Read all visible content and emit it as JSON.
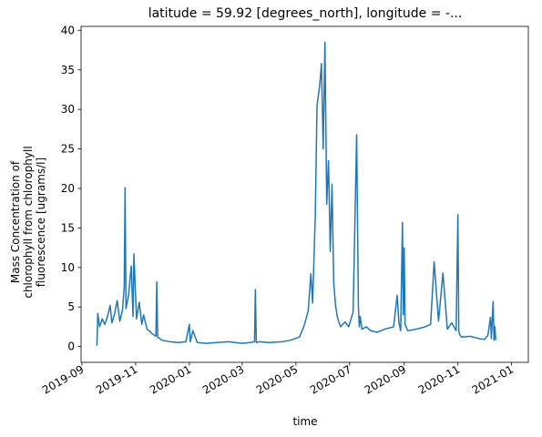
{
  "chart_data": {
    "type": "line",
    "title": "latitude = 59.92 [degrees_north], longitude = -...",
    "xlabel": "time",
    "ylabel_lines": [
      "Mass Concentration of",
      "chlorophyll from chlorophyll",
      "fluorescence [ugrams/l]"
    ],
    "x_axis": "date",
    "xlim": [
      "2019-08-31",
      "2021-01-20"
    ],
    "ylim": [
      -2,
      40.5
    ],
    "x_ticks": [
      "2019-09",
      "2019-11",
      "2020-01",
      "2020-03",
      "2020-05",
      "2020-07",
      "2020-09",
      "2020-11",
      "2021-01"
    ],
    "y_ticks": [
      0,
      5,
      10,
      15,
      20,
      25,
      30,
      35,
      40
    ],
    "grid": false,
    "series": [
      {
        "color": "#1f77b4",
        "x": [
          "2019-09-18",
          "2019-09-19",
          "2019-09-21",
          "2019-09-24",
          "2019-09-27",
          "2019-09-30",
          "2019-10-03",
          "2019-10-05",
          "2019-10-08",
          "2019-10-11",
          "2019-10-14",
          "2019-10-17",
          "2019-10-19",
          "2019-10-20",
          "2019-10-21",
          "2019-10-24",
          "2019-10-27",
          "2019-10-29",
          "2019-10-30",
          "2019-11-02",
          "2019-11-05",
          "2019-11-08",
          "2019-11-10",
          "2019-11-14",
          "2019-11-20",
          "2019-11-24",
          "2019-11-25",
          "2019-11-26",
          "2019-12-01",
          "2019-12-10",
          "2019-12-20",
          "2019-12-28",
          "2020-01-01",
          "2020-01-02",
          "2020-01-05",
          "2020-01-10",
          "2020-01-20",
          "2020-02-01",
          "2020-02-15",
          "2020-03-01",
          "2020-03-10",
          "2020-03-15",
          "2020-03-16",
          "2020-03-17",
          "2020-03-20",
          "2020-04-01",
          "2020-04-15",
          "2020-04-25",
          "2020-05-05",
          "2020-05-10",
          "2020-05-15",
          "2020-05-18",
          "2020-05-20",
          "2020-05-23",
          "2020-05-25",
          "2020-05-28",
          "2020-05-30",
          "2020-06-01",
          "2020-06-03",
          "2020-06-05",
          "2020-06-07",
          "2020-06-09",
          "2020-06-11",
          "2020-06-13",
          "2020-06-15",
          "2020-06-17",
          "2020-06-19",
          "2020-06-21",
          "2020-06-23",
          "2020-06-26",
          "2020-06-30",
          "2020-07-05",
          "2020-07-09",
          "2020-07-11",
          "2020-07-12",
          "2020-07-13",
          "2020-07-15",
          "2020-07-20",
          "2020-07-25",
          "2020-08-01",
          "2020-08-10",
          "2020-08-20",
          "2020-08-24",
          "2020-08-26",
          "2020-08-28",
          "2020-08-30",
          "2020-08-31",
          "2020-09-01",
          "2020-09-02",
          "2020-09-05",
          "2020-09-15",
          "2020-09-25",
          "2020-10-01",
          "2020-10-05",
          "2020-10-10",
          "2020-10-15",
          "2020-10-20",
          "2020-10-25",
          "2020-10-30",
          "2020-11-01",
          "2020-11-02",
          "2020-11-03",
          "2020-11-05",
          "2020-11-15",
          "2020-11-25",
          "2020-12-01",
          "2020-12-05",
          "2020-12-08",
          "2020-12-09",
          "2020-12-11",
          "2020-12-12",
          "2020-12-13",
          "2020-12-14"
        ],
        "y": [
          0.1,
          4.2,
          2.5,
          3.5,
          2.8,
          3.8,
          5.2,
          3.0,
          4.1,
          5.8,
          3.2,
          4.6,
          7.5,
          20.1,
          4.8,
          6.5,
          10.2,
          3.8,
          11.7,
          3.5,
          5.6,
          2.8,
          4.0,
          2.2,
          1.6,
          1.3,
          8.2,
          1.2,
          0.8,
          0.6,
          0.5,
          0.6,
          2.8,
          0.6,
          2.0,
          0.5,
          0.4,
          0.5,
          0.6,
          0.4,
          0.5,
          0.6,
          7.2,
          0.5,
          0.6,
          0.5,
          0.6,
          0.8,
          1.2,
          2.5,
          4.5,
          9.2,
          5.5,
          16.5,
          30.5,
          33.0,
          35.8,
          25.0,
          38.5,
          18.0,
          23.5,
          12.0,
          20.5,
          8.0,
          5.2,
          3.8,
          3.0,
          2.5,
          2.8,
          3.1,
          2.5,
          4.4,
          26.8,
          5.0,
          2.5,
          3.8,
          2.2,
          2.5,
          2.0,
          1.8,
          2.2,
          2.5,
          6.5,
          3.0,
          2.0,
          15.7,
          4.0,
          12.5,
          2.8,
          2.0,
          2.2,
          2.5,
          2.8,
          10.7,
          3.2,
          9.3,
          2.2,
          3.0,
          2.0,
          16.7,
          2.0,
          1.5,
          1.2,
          1.3,
          1.0,
          0.9,
          1.4,
          3.7,
          1.0,
          5.7,
          0.8,
          2.5,
          0.8
        ]
      }
    ]
  }
}
